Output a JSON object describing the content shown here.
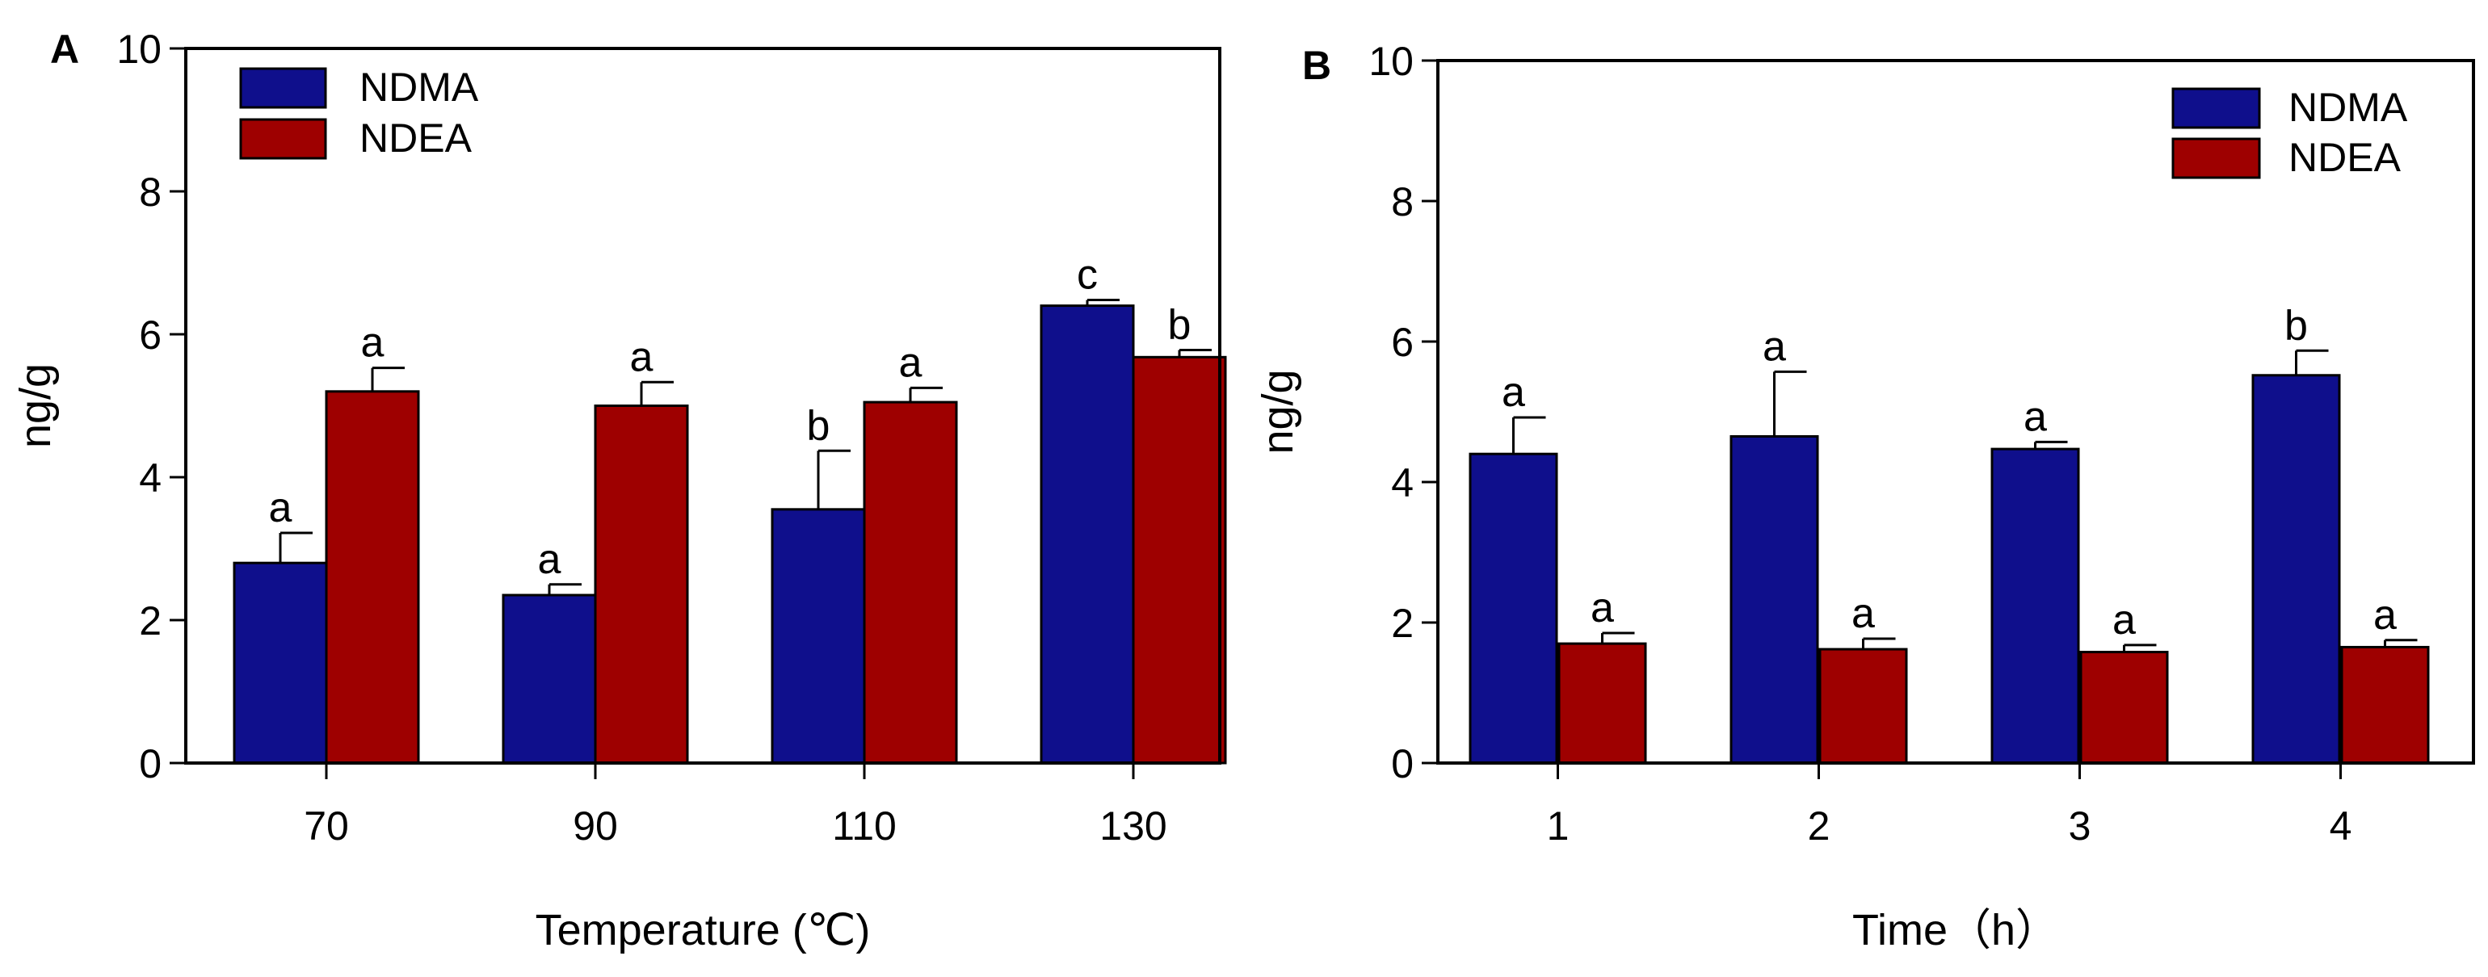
{
  "chart_data": [
    {
      "type": "bar",
      "panel_label": "A",
      "title": "",
      "xlabel": "Temperature (℃)",
      "ylabel": "ng/g",
      "ylim": [
        0,
        10
      ],
      "yticks": [
        0,
        2,
        4,
        6,
        8,
        10
      ],
      "categories": [
        "70",
        "90",
        "110",
        "130"
      ],
      "legend_position": "top-left",
      "grid": false,
      "series": [
        {
          "name": "NDMA",
          "color": "#0f0f8c",
          "values": [
            2.8,
            2.35,
            3.55,
            6.4
          ],
          "errors": [
            0.42,
            0.15,
            0.82,
            0.08
          ],
          "labels": [
            "a",
            "a",
            "b",
            "c"
          ]
        },
        {
          "name": "NDEA",
          "color": "#9e0000",
          "values": [
            5.2,
            5.0,
            5.05,
            5.68
          ],
          "errors": [
            0.33,
            0.33,
            0.2,
            0.1
          ],
          "labels": [
            "a",
            "a",
            "a",
            "b"
          ]
        }
      ]
    },
    {
      "type": "bar",
      "panel_label": "B",
      "title": "",
      "xlabel": "Time（h）",
      "ylabel": "ng/g",
      "ylim": [
        0,
        10
      ],
      "yticks": [
        0,
        2,
        4,
        6,
        8,
        10
      ],
      "categories": [
        "1",
        "2",
        "3",
        "4"
      ],
      "legend_position": "top-right",
      "grid": false,
      "series": [
        {
          "name": "NDMA",
          "color": "#0f0f8c",
          "values": [
            4.4,
            4.65,
            4.47,
            5.52
          ],
          "errors": [
            0.52,
            0.92,
            0.1,
            0.35
          ],
          "labels": [
            "a",
            "a",
            "a",
            "b"
          ]
        },
        {
          "name": "NDEA",
          "color": "#9e0000",
          "values": [
            1.7,
            1.62,
            1.58,
            1.65
          ],
          "errors": [
            0.15,
            0.15,
            0.1,
            0.1
          ],
          "labels": [
            "a",
            "a",
            "a",
            "a"
          ]
        }
      ]
    }
  ]
}
